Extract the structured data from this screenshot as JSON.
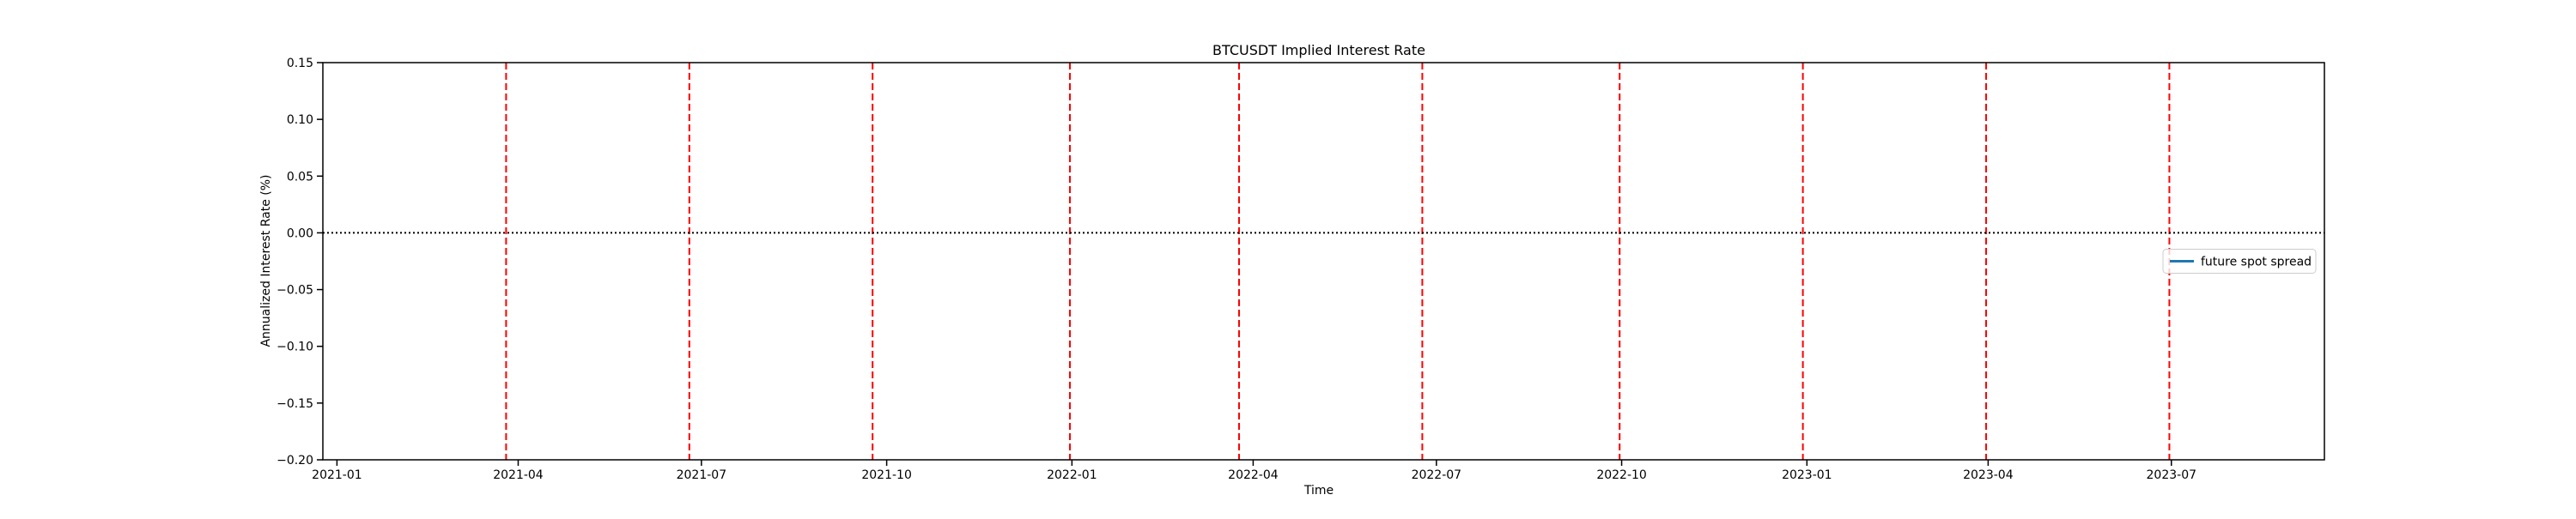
{
  "chart_data": {
    "type": "line",
    "title": "BTCUSDT Implied Interest Rate",
    "xlabel": "Time",
    "ylabel": "Annualized Interest Rate (%)",
    "ylim": [
      -0.2,
      0.15
    ],
    "xlim": [
      "2020-12-25",
      "2023-09-15"
    ],
    "x_ticks": [
      "2021-01",
      "2021-04",
      "2021-07",
      "2021-10",
      "2022-01",
      "2022-04",
      "2022-07",
      "2022-10",
      "2023-01",
      "2023-04",
      "2023-07"
    ],
    "y_ticks": [
      "−0.20",
      "−0.15",
      "−0.10",
      "−0.05",
      "0.00",
      "0.05",
      "0.10",
      "0.15"
    ],
    "series": [
      {
        "name": "future spot spread",
        "x": [],
        "values": [],
        "color": "#1f77b4"
      }
    ],
    "reference_lines": {
      "horizontal": {
        "y": 0.0,
        "style": "dotted",
        "color": "#000000"
      },
      "vertical": {
        "dates": [
          "2021-03-26",
          "2021-06-25",
          "2021-09-24",
          "2021-12-31",
          "2022-03-25",
          "2022-06-24",
          "2022-09-30",
          "2022-12-30",
          "2023-03-31",
          "2023-06-30"
        ],
        "style": "dashed",
        "color": "#ff0000"
      }
    },
    "legend_position": "center-right",
    "grid": false
  }
}
